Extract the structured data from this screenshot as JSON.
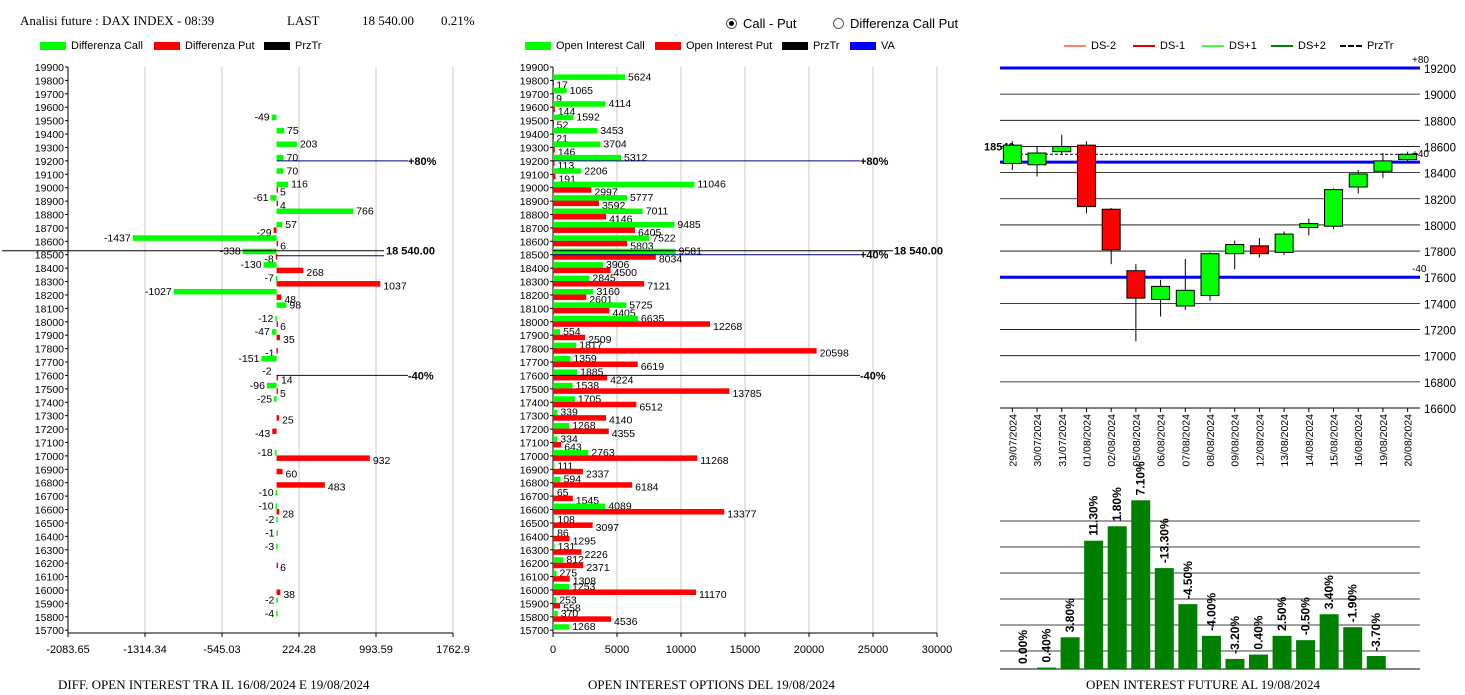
{
  "header": {
    "title": "Analisi future : DAX INDEX - 08:39",
    "last_label": "LAST",
    "last_value": "18 540.00",
    "change": "0.21%"
  },
  "radios": [
    {
      "label": "Call - Put",
      "selected": true
    },
    {
      "label": "Differenza Call Put",
      "selected": false
    }
  ],
  "footers": {
    "diff": "DIFF. OPEN INTEREST TRA IL 16/08/2024 E 19/08/2024",
    "oi": "OPEN INTEREST OPTIONS DEL 19/08/2024",
    "future": "OPEN INTEREST FUTURE AL 19/08/2024"
  },
  "colors": {
    "call": "#00ff00",
    "put": "#ff0000",
    "va": "#0000ff",
    "vol": "#008000",
    "navy": "#000080"
  },
  "chart_data": [
    {
      "type": "bar",
      "orientation": "horizontal",
      "legend": [
        "Differenza Call",
        "Differenza Put",
        "PrzTr"
      ],
      "strikes": [
        "19900",
        "19800",
        "19700",
        "19600",
        "19500",
        "19400",
        "19300",
        "19200",
        "19100",
        "19000",
        "18900",
        "18800",
        "18700",
        "18600",
        "18500",
        "18400",
        "18300",
        "18200",
        "18100",
        "18000",
        "17900",
        "17800",
        "17700",
        "17600",
        "17500",
        "17400",
        "17300",
        "17200",
        "17100",
        "17000",
        "16900",
        "16800",
        "16700",
        "16600",
        "16500",
        "16400",
        "16300",
        "16200",
        "16100",
        "16000",
        "15900",
        "15800",
        "15700"
      ],
      "call": [
        null,
        null,
        null,
        null,
        -49,
        75,
        203,
        70,
        70,
        116,
        -61,
        766,
        57,
        -1437,
        -338,
        -130,
        -7,
        -1027,
        98,
        -12,
        -47,
        null,
        -151,
        null,
        -96,
        -25,
        null,
        null,
        null,
        -18,
        null,
        null,
        -10,
        -10,
        -2,
        -1,
        -3,
        null,
        null,
        null,
        -2,
        -4,
        null
      ],
      "put": [
        null,
        null,
        null,
        null,
        null,
        null,
        null,
        null,
        null,
        5,
        4,
        null,
        -29,
        6,
        -8,
        268,
        1037,
        48,
        null,
        6,
        35,
        -1,
        null,
        14,
        5,
        null,
        25,
        -43,
        null,
        932,
        60,
        483,
        null,
        28,
        null,
        null,
        null,
        6,
        null,
        38,
        null,
        null,
        null
      ],
      "call_labels": [
        "",
        "",
        "",
        "",
        "-49",
        "75",
        "203",
        "70",
        "70",
        "116",
        "-61",
        "766",
        "57",
        "-1437",
        "-338",
        "-130",
        "-7",
        "-1027",
        "98",
        "-12",
        "-47",
        "",
        "-151",
        "",
        "-96",
        "-25",
        "",
        "",
        "",
        "-18",
        "",
        "",
        "-10",
        "-10",
        "-2",
        "-1",
        "-3",
        "",
        "",
        "",
        "-2",
        "-4",
        ""
      ],
      "put_labels": [
        "",
        "",
        "",
        "",
        "",
        "",
        "",
        "",
        "",
        "5",
        "4",
        "",
        "-29",
        "6",
        "-8",
        "268",
        "1037",
        "48",
        "",
        "6",
        "35",
        "-1",
        "",
        "14",
        "5",
        "",
        "25",
        "-43",
        "",
        "932",
        "60",
        "483",
        "",
        "28",
        "",
        "",
        "",
        "6",
        "",
        "38",
        "",
        "",
        ""
      ],
      "extra_label": "-2",
      "xticks": [
        "-2083.65",
        "-1314.34",
        "-545.03",
        "224.28",
        "993.59",
        "1762.9"
      ],
      "xlim": [
        -2083.65,
        1762.9
      ],
      "markers": [
        {
          "label": "+80%",
          "strike": 19200
        },
        {
          "label": "-40%",
          "strike": 17600
        }
      ],
      "price_label": "18 540.00"
    },
    {
      "type": "bar",
      "orientation": "horizontal",
      "legend": [
        "Open Interest Call",
        "Open Interest Put",
        "PrzTr",
        "VA"
      ],
      "strikes": [
        "19900",
        "19800",
        "19700",
        "19600",
        "19500",
        "19400",
        "19300",
        "19200",
        "19100",
        "19000",
        "18900",
        "18800",
        "18700",
        "18600",
        "18500",
        "18400",
        "18300",
        "18200",
        "18100",
        "18000",
        "17900",
        "17800",
        "17700",
        "17600",
        "17500",
        "17400",
        "17300",
        "17200",
        "17100",
        "17000",
        "16900",
        "16800",
        "16700",
        "16600",
        "16500",
        "16400",
        "16300",
        "16200",
        "16100",
        "16000",
        "15900",
        "15800",
        "15700"
      ],
      "call": [
        null,
        5624,
        1065,
        4114,
        1592,
        3453,
        3704,
        5312,
        2206,
        11046,
        5777,
        7011,
        9485,
        7522,
        9581,
        3906,
        2845,
        3160,
        5725,
        6635,
        554,
        1817,
        1359,
        1885,
        1538,
        1705,
        339,
        1268,
        334,
        2763,
        111,
        594,
        65,
        4089,
        108,
        86,
        131,
        812,
        275,
        1253,
        253,
        370,
        1268
      ],
      "put": [
        null,
        17,
        9,
        144,
        52,
        21,
        146,
        113,
        191,
        2997,
        3592,
        4146,
        6405,
        5803,
        8034,
        4500,
        7121,
        2601,
        4405,
        12268,
        2509,
        20598,
        6619,
        4224,
        13785,
        6512,
        4140,
        4355,
        643,
        11268,
        2337,
        6184,
        1545,
        13377,
        3097,
        1295,
        2226,
        2371,
        1308,
        11170,
        558,
        4536,
        null
      ],
      "xticks": [
        "0",
        "5000",
        "10000",
        "15000",
        "20000",
        "25000",
        "30000"
      ],
      "xlim": [
        0,
        30000
      ],
      "markers": [
        {
          "label": "+80%",
          "strike": 19200
        },
        {
          "label": "+40%",
          "strike": 18500
        },
        {
          "label": "-40%",
          "strike": 17600
        }
      ],
      "price_label": "18 540.00"
    },
    {
      "type": "candlestick",
      "legend": [
        "DS-2",
        "DS-1",
        "DS+1",
        "DS+2",
        "PrzTr"
      ],
      "dates": [
        "29/07/2024",
        "30/07/2024",
        "31/07/2024",
        "01/08/2024",
        "02/08/2024",
        "05/08/2024",
        "06/08/2024",
        "07/08/2024",
        "08/08/2024",
        "09/08/2024",
        "12/08/2024",
        "13/08/2024",
        "14/08/2024",
        "15/08/2024",
        "16/08/2024",
        "19/08/2024",
        "20/08/2024"
      ],
      "open": [
        18470,
        18460,
        18560,
        18610,
        18120,
        17650,
        17430,
        17380,
        17460,
        17780,
        17840,
        17790,
        17980,
        17990,
        18290,
        18410,
        18500
      ],
      "close": [
        18610,
        18550,
        18600,
        18140,
        17810,
        17440,
        17530,
        17500,
        17780,
        17850,
        17780,
        17930,
        18010,
        18270,
        18390,
        18490,
        18540
      ],
      "high": [
        18640,
        18600,
        18690,
        18640,
        18130,
        17700,
        17580,
        17740,
        17790,
        17880,
        17900,
        17950,
        18050,
        18280,
        18420,
        18550,
        18560
      ],
      "low": [
        18420,
        18370,
        18540,
        18090,
        17700,
        17110,
        17300,
        17350,
        17420,
        17660,
        17750,
        17770,
        17920,
        17970,
        18240,
        18360,
        18480
      ],
      "yticks": [
        "19200",
        "19000",
        "18800",
        "18600",
        "18400",
        "18200",
        "18000",
        "17800",
        "17600",
        "17400",
        "17200",
        "17000",
        "16800",
        "16600"
      ],
      "ylim": [
        16600,
        19200
      ],
      "bands": [
        {
          "label": "+80",
          "value": 19200
        },
        {
          "label": "+40",
          "value": 18480
        },
        {
          "label": "-40",
          "value": 17600
        }
      ],
      "price_label": "18540",
      "price_value": 18540
    },
    {
      "type": "bar",
      "labels": [
        "0.00%",
        "0.40%",
        "3.80%",
        "11.30%",
        "1.80%",
        "7.10%",
        "-13.30%",
        "-4.50%",
        "-4.00%",
        "-3.20%",
        "0.40%",
        "2.50%",
        "-0.50%",
        "3.40%",
        "-1.90%",
        "-3.70%"
      ],
      "values": [
        0,
        1,
        22,
        89,
        99,
        117,
        70,
        45,
        23,
        7,
        10,
        23,
        20,
        38,
        29,
        9
      ]
    }
  ]
}
